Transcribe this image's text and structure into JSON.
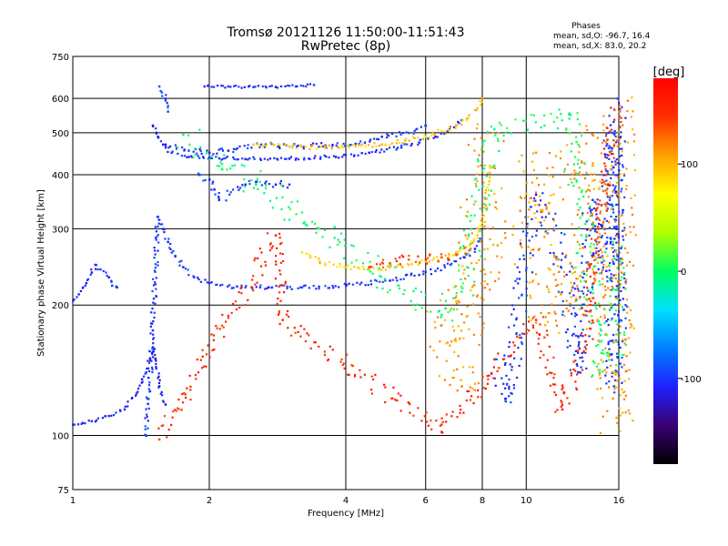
{
  "chart_data": {
    "type": "scatter",
    "title": "Tromsø 20121126 11:50:00-11:51:43",
    "subtitle": "RwPretec (8p)",
    "xlabel": "Frequency [MHz]",
    "ylabel": "Stationary phase Virtual Height [km]",
    "x_scale": "log",
    "y_scale": "log",
    "xlim": [
      1,
      16
    ],
    "ylim": [
      75,
      750
    ],
    "x_ticks": [
      1,
      2,
      4,
      6,
      8,
      10,
      16
    ],
    "y_ticks": [
      75,
      100,
      200,
      300,
      400,
      500,
      600,
      750
    ],
    "grid": true,
    "stats": {
      "heading": "Phases",
      "line1": "mean, sd,O:  -96.7, 16.4",
      "line2": "mean, sd,X:  83.0, 20.2"
    },
    "colorbar": {
      "label": "[deg]",
      "ticks": [
        -100,
        0,
        100
      ],
      "range": [
        -180,
        180
      ],
      "colors": [
        "#000000",
        "#3a0070",
        "#2020ff",
        "#0080ff",
        "#00e0ff",
        "#00ff60",
        "#b0ff00",
        "#ffff00",
        "#ffa000",
        "#ff3000",
        "#ff0000"
      ]
    },
    "traces": [
      {
        "name": "",
        "phase": -110,
        "spread": 4,
        "points": [
          [
            1.0,
            106
          ],
          [
            1.05,
            107
          ],
          [
            1.1,
            108
          ],
          [
            1.2,
            111
          ],
          [
            1.3,
            115
          ],
          [
            1.38,
            125
          ],
          [
            1.42,
            135
          ],
          [
            1.45,
            140
          ],
          [
            1.48,
            150
          ],
          [
            1.5,
            160
          ],
          [
            1.52,
            150
          ],
          [
            1.55,
            130
          ],
          [
            1.6,
            118
          ]
        ]
      },
      {
        "name": "",
        "phase": -105,
        "spread": 4,
        "points": [
          [
            1.0,
            205
          ],
          [
            1.03,
            212
          ],
          [
            1.07,
            225
          ],
          [
            1.1,
            238
          ],
          [
            1.12,
            248
          ],
          [
            1.15,
            242
          ],
          [
            1.2,
            232
          ],
          [
            1.22,
            222
          ],
          [
            1.25,
            220
          ]
        ]
      },
      {
        "name": "",
        "phase": -100,
        "spread": 5,
        "points": [
          [
            1.45,
            100
          ],
          [
            1.5,
            175
          ],
          [
            1.54,
            320
          ],
          [
            1.58,
            300
          ],
          [
            1.62,
            280
          ],
          [
            1.68,
            260
          ],
          [
            1.75,
            245
          ],
          [
            1.85,
            232
          ],
          [
            2.0,
            225
          ],
          [
            2.3,
            221
          ],
          [
            2.7,
            220
          ],
          [
            3.2,
            220
          ],
          [
            4.0,
            222
          ],
          [
            5.0,
            228
          ],
          [
            5.8,
            235
          ],
          [
            6.3,
            240
          ],
          [
            6.8,
            248
          ],
          [
            7.3,
            258
          ],
          [
            7.7,
            270
          ],
          [
            7.9,
            285
          ]
        ]
      },
      {
        "name": "",
        "phase": -105,
        "spread": 4,
        "points": [
          [
            1.5,
            520
          ],
          [
            1.54,
            490
          ],
          [
            1.58,
            470
          ],
          [
            1.65,
            450
          ],
          [
            1.8,
            440
          ],
          [
            2.0,
            438
          ],
          [
            2.4,
            435
          ],
          [
            3.0,
            436
          ],
          [
            3.8,
            440
          ],
          [
            4.5,
            450
          ],
          [
            5.2,
            462
          ],
          [
            5.8,
            475
          ],
          [
            6.3,
            490
          ],
          [
            6.7,
            505
          ],
          [
            7.0,
            520
          ],
          [
            7.2,
            535
          ]
        ]
      },
      {
        "name": "",
        "phase": -100,
        "spread": 6,
        "points": [
          [
            1.6,
            470
          ],
          [
            1.8,
            455
          ],
          [
            2.0,
            450
          ],
          [
            2.2,
            455
          ],
          [
            2.6,
            470
          ],
          [
            3.0,
            465
          ],
          [
            3.6,
            468
          ],
          [
            4.2,
            472
          ],
          [
            4.8,
            490
          ],
          [
            5.5,
            500
          ],
          [
            6.0,
            520
          ]
        ]
      },
      {
        "name": "",
        "phase": -105,
        "spread": 3,
        "points": [
          [
            1.95,
            640
          ],
          [
            2.2,
            640
          ],
          [
            2.5,
            638
          ],
          [
            2.8,
            638
          ],
          [
            3.1,
            640
          ],
          [
            3.4,
            645
          ]
        ]
      },
      {
        "name": "",
        "phase": -100,
        "spread": 8,
        "points": [
          [
            1.9,
            400
          ],
          [
            2.0,
            390
          ],
          [
            2.05,
            370
          ],
          [
            2.1,
            350
          ],
          [
            2.4,
            380
          ],
          [
            2.8,
            380
          ],
          [
            3.0,
            380
          ]
        ]
      },
      {
        "name": "",
        "phase": -95,
        "spread": 4,
        "points": [
          [
            1.55,
            640
          ],
          [
            1.57,
            620
          ],
          [
            1.6,
            600
          ],
          [
            1.62,
            560
          ]
        ]
      },
      {
        "name": "",
        "phase": 90,
        "spread": 5,
        "points": [
          [
            3.2,
            265
          ],
          [
            3.5,
            252
          ],
          [
            4.0,
            245
          ],
          [
            4.5,
            242
          ],
          [
            5.0,
            245
          ],
          [
            5.5,
            248
          ],
          [
            6.0,
            252
          ],
          [
            6.5,
            258
          ],
          [
            7.0,
            265
          ],
          [
            7.5,
            275
          ],
          [
            7.8,
            290
          ],
          [
            8.0,
            310
          ],
          [
            8.15,
            340
          ],
          [
            8.25,
            380
          ],
          [
            8.3,
            420
          ]
        ]
      },
      {
        "name": "",
        "phase": 95,
        "spread": 5,
        "points": [
          [
            2.5,
            470
          ],
          [
            3.0,
            465
          ],
          [
            3.6,
            462
          ],
          [
            4.2,
            466
          ],
          [
            4.8,
            470
          ],
          [
            5.4,
            480
          ],
          [
            6.0,
            490
          ],
          [
            6.5,
            505
          ],
          [
            7.0,
            520
          ],
          [
            7.4,
            540
          ],
          [
            7.8,
            570
          ],
          [
            8.0,
            600
          ]
        ]
      },
      {
        "name": "",
        "phase": 140,
        "spread": 10,
        "points": [
          [
            4.5,
            245
          ],
          [
            5.0,
            250
          ],
          [
            5.5,
            255
          ],
          [
            6.0,
            255
          ],
          [
            6.5,
            258
          ],
          [
            7.0,
            262
          ],
          [
            7.5,
            268
          ]
        ]
      },
      {
        "name": "",
        "phase": -100,
        "spread": 20,
        "points": [
          [
            8.5,
            150
          ],
          [
            9.0,
            120
          ],
          [
            10.5,
            360
          ],
          [
            11.5,
            300
          ],
          [
            12.5,
            200
          ],
          [
            13.0,
            140
          ],
          [
            14.0,
            350
          ],
          [
            15.0,
            240
          ],
          [
            15.5,
            500
          ],
          [
            15.8,
            300
          ],
          [
            16.0,
            220
          ],
          [
            15.6,
            130
          ],
          [
            15.9,
            600
          ]
        ]
      },
      {
        "name": "",
        "phase": 110,
        "spread": 40,
        "points": [
          [
            10.5,
            450
          ],
          [
            11.0,
            180
          ],
          [
            12.5,
            250
          ],
          [
            13.5,
            190
          ],
          [
            14.0,
            420
          ],
          [
            15.0,
            380
          ],
          [
            15.8,
            110
          ],
          [
            16.0,
            560
          ],
          [
            6.5,
            180
          ],
          [
            7.2,
            130
          ],
          [
            8.2,
            500
          ]
        ]
      },
      {
        "name": "",
        "phase": 150,
        "spread": 15,
        "points": [
          [
            1.55,
            98
          ],
          [
            2.8,
            290
          ],
          [
            2.9,
            185
          ],
          [
            6.5,
            102
          ],
          [
            10.5,
            185
          ],
          [
            12.0,
            115
          ],
          [
            13.5,
            165
          ],
          [
            15.0,
            400
          ],
          [
            16.0,
            580
          ]
        ]
      },
      {
        "name": "",
        "phase": 0,
        "spread": 25,
        "points": [
          [
            1.75,
            495
          ],
          [
            6.5,
            190
          ],
          [
            7.2,
            215
          ],
          [
            8.5,
            510
          ],
          [
            12.5,
            550
          ],
          [
            14.5,
            140
          ],
          [
            15.8,
            165
          ],
          [
            15.5,
            280
          ]
        ]
      }
    ]
  }
}
